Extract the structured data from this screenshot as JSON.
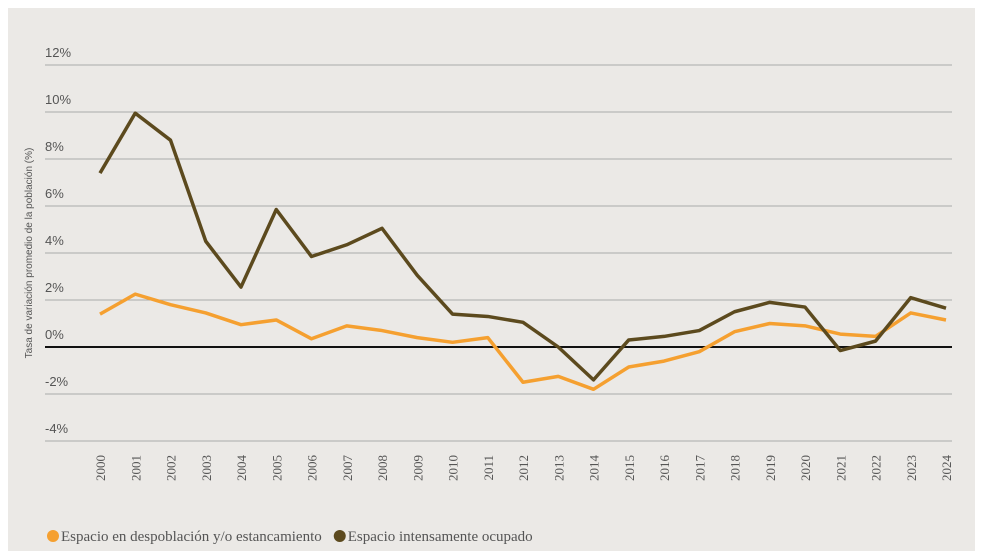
{
  "chart_data": {
    "type": "line",
    "y_label": "Tasa de variación promedio de la población (%)",
    "categories": [
      "2000",
      "2001",
      "2002",
      "2003",
      "2004",
      "2005",
      "2006",
      "2007",
      "2008",
      "2009",
      "2010",
      "2011",
      "2012",
      "2013",
      "2014",
      "2015",
      "2016",
      "2017",
      "2018",
      "2019",
      "2020",
      "2021",
      "2022",
      "2023",
      "2024"
    ],
    "series": [
      {
        "name": "Espacio en despoblación y/o estancamiento",
        "color": "#f5a030",
        "values": [
          1.4,
          2.25,
          1.8,
          1.45,
          0.95,
          1.15,
          0.35,
          0.9,
          0.7,
          0.4,
          0.2,
          0.4,
          -1.5,
          -1.25,
          -1.8,
          -0.85,
          -0.6,
          -0.2,
          0.65,
          1.0,
          0.9,
          0.55,
          0.45,
          1.45,
          1.15
        ]
      },
      {
        "name": "Espacio intensamente ocupado",
        "color": "#5c4a1e",
        "values": [
          7.4,
          9.95,
          8.8,
          4.5,
          2.55,
          5.85,
          3.85,
          4.35,
          5.05,
          3.05,
          1.4,
          1.3,
          1.05,
          0,
          -1.4,
          0.3,
          0.45,
          0.7,
          1.5,
          1.9,
          1.7,
          -0.15,
          0.25,
          2.1,
          1.65
        ]
      }
    ],
    "ylim": [
      -4,
      12
    ],
    "yticks": [
      {
        "value": -4,
        "label": "-4%"
      },
      {
        "value": -2,
        "label": "-2%"
      },
      {
        "value": 0,
        "label": "0%"
      },
      {
        "value": 2,
        "label": "2%"
      },
      {
        "value": 4,
        "label": "4%"
      },
      {
        "value": 6,
        "label": "6%"
      },
      {
        "value": 8,
        "label": "8%"
      },
      {
        "value": 10,
        "label": "10%"
      },
      {
        "value": 12,
        "label": "12%"
      }
    ],
    "grid": true
  }
}
